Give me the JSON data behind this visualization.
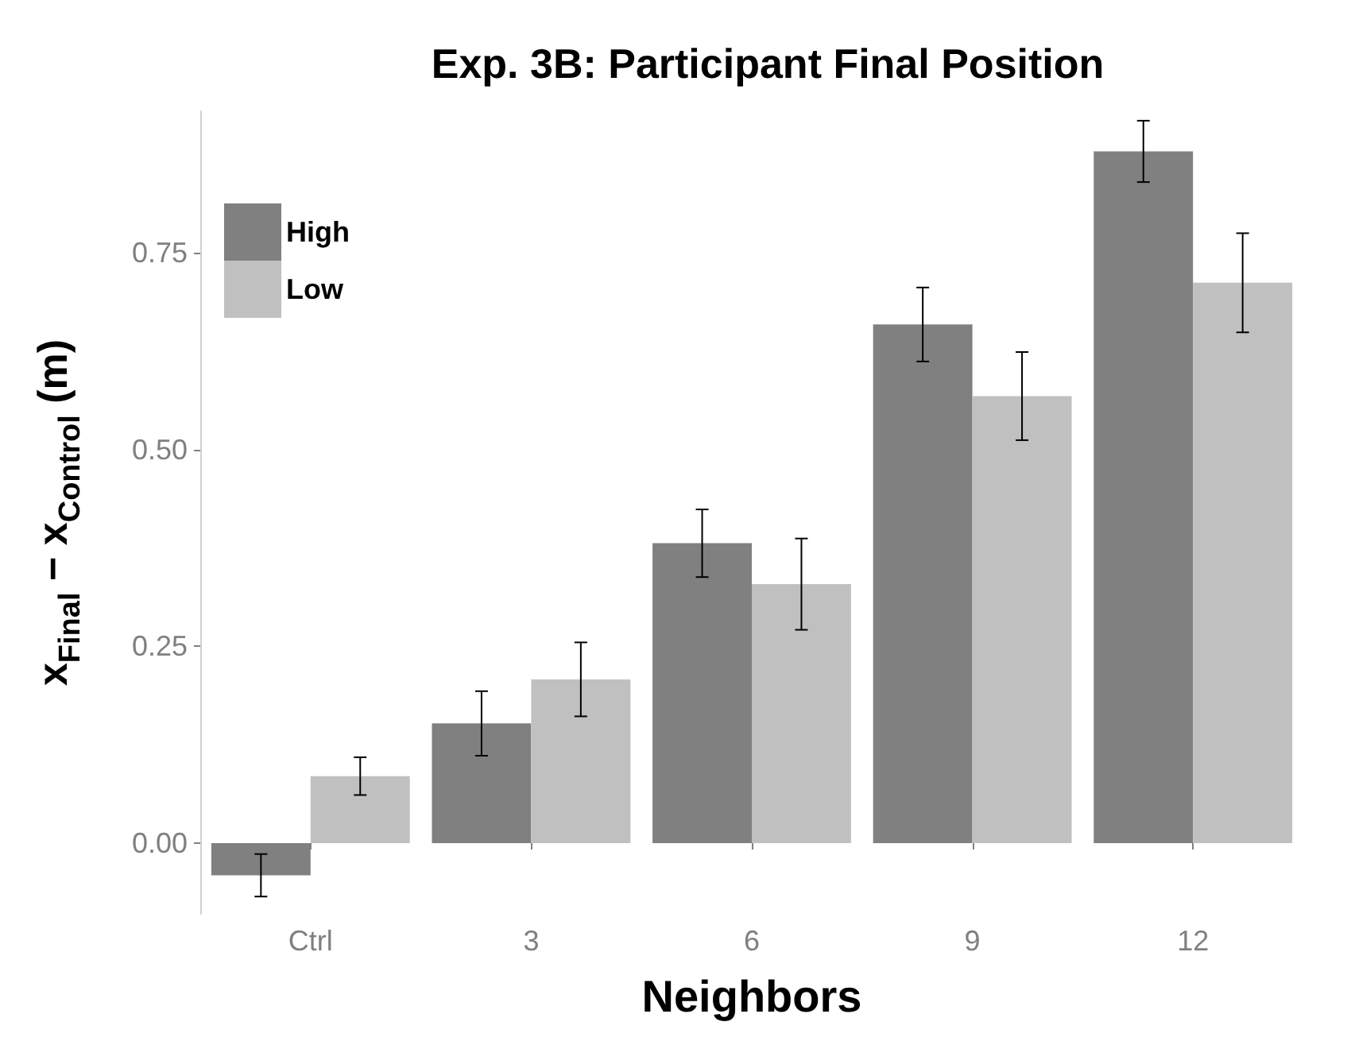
{
  "chart_data": {
    "type": "bar",
    "title": "Exp. 3B: Participant Final Position",
    "xlabel": "Neighbors",
    "ylabel": "x$_{Final}$ − x$_{Control}$ (m)",
    "categories": [
      "Ctrl",
      "3",
      "6",
      "9",
      "12"
    ],
    "series": [
      {
        "name": "High",
        "color": "#808080",
        "values": [
          -0.041,
          0.152,
          0.381,
          0.659,
          0.879
        ],
        "errors": [
          0.027,
          0.041,
          0.043,
          0.047,
          0.039
        ]
      },
      {
        "name": "Low",
        "color": "#c0c0c0",
        "values": [
          0.085,
          0.208,
          0.329,
          0.568,
          0.712
        ],
        "errors": [
          0.024,
          0.047,
          0.058,
          0.056,
          0.063
        ]
      }
    ],
    "ylim": [
      -0.09,
      0.93
    ],
    "yticks": [
      {
        "value": 0,
        "label": "0.00"
      },
      {
        "value": 0.25,
        "label": "0.25"
      },
      {
        "value": 0.5,
        "label": "0.50"
      },
      {
        "value": 0.75,
        "label": "0.75"
      }
    ],
    "grid": false,
    "legend": "top left"
  }
}
